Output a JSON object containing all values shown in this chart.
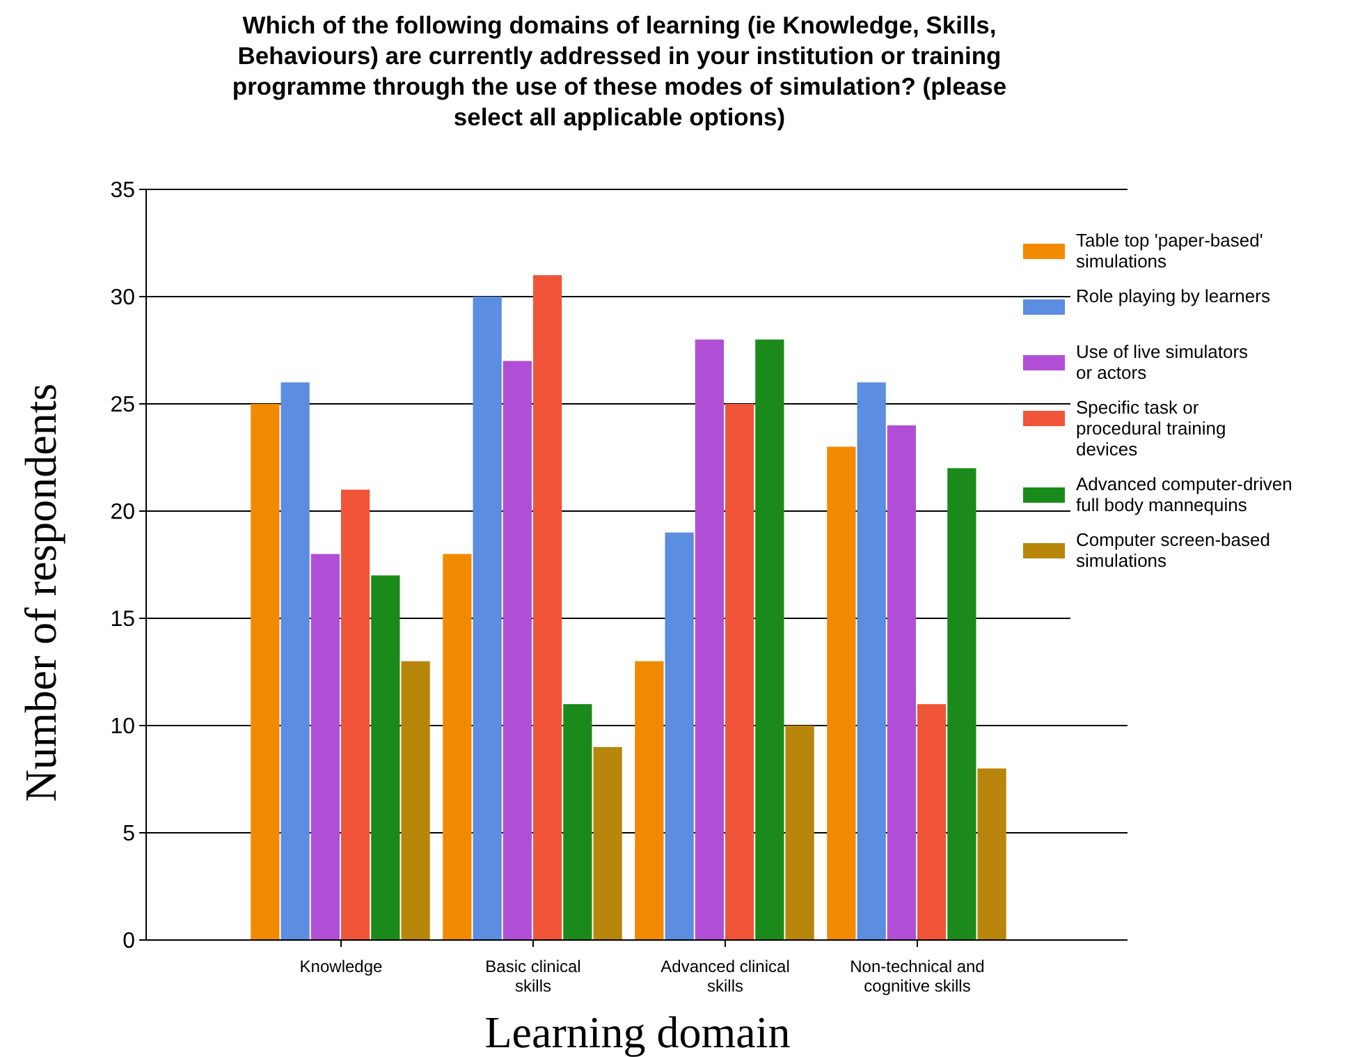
{
  "chart_data": {
    "type": "bar",
    "title": "Which of the following domains of learning (ie Knowledge, Skills, Behaviours) are currently addressed in your institution or training programme through the use of these modes of simulation? (please select all applicable options)",
    "xlabel": "Learning domain",
    "ylabel": "Number of respondents",
    "categories": [
      "Knowledge",
      "Basic clinical skills",
      "Advanced clinical skills",
      "Non-technical and cognitive skills"
    ],
    "series": [
      {
        "name": "Table top 'paper-based' simulations",
        "color": "#f28a00",
        "values": [
          25,
          18,
          13,
          23
        ]
      },
      {
        "name": "Role playing by learners",
        "color": "#5b8de0",
        "values": [
          26,
          30,
          19,
          26
        ]
      },
      {
        "name": "Use of live simulators or actors",
        "color": "#b04fd6",
        "values": [
          18,
          27,
          28,
          24
        ]
      },
      {
        "name": "Specific task or procedural training devices",
        "color": "#f0553a",
        "values": [
          21,
          31,
          25,
          11
        ]
      },
      {
        "name": "Advanced computer-driven full body mannequins",
        "color": "#1a8a1a",
        "values": [
          17,
          11,
          28,
          22
        ]
      },
      {
        "name": "Computer screen-based simulations",
        "color": "#b8860b",
        "values": [
          13,
          9,
          10,
          8
        ]
      }
    ],
    "ylim": [
      0,
      35
    ],
    "yticks": [
      0,
      5,
      10,
      15,
      20,
      25,
      30,
      35
    ],
    "grid": "y",
    "legend": "right"
  }
}
